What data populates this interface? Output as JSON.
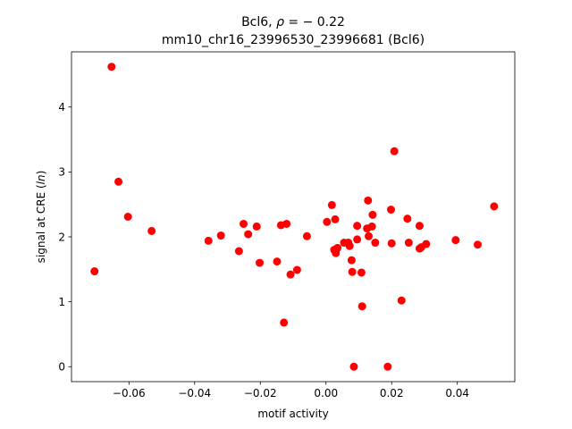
{
  "chart_data": {
    "type": "scatter",
    "title_main": "Bcl6, ",
    "title_rho_symbol": "ρ",
    "title_rho_value": " = − 0.22",
    "title_line2": "mm10_chr16_23996530_23996681 (Bcl6)",
    "xlabel": "motif activity",
    "ylabel_prefix": "signal at CRE (",
    "ylabel_italic": "ln",
    "ylabel_suffix": ")",
    "xlim": [
      -0.0775,
      0.0575
    ],
    "ylim": [
      -0.23,
      4.85
    ],
    "xticks": [
      -0.06,
      -0.04,
      -0.02,
      0.0,
      0.02,
      0.04
    ],
    "xtick_labels": [
      "−0.06",
      "−0.04",
      "−0.02",
      "0.00",
      "0.02",
      "0.04"
    ],
    "yticks": [
      0,
      1,
      2,
      3,
      4
    ],
    "ytick_labels": [
      "0",
      "1",
      "2",
      "3",
      "4"
    ],
    "grid": false,
    "marker_color": "#ff0000",
    "points": [
      {
        "x": -0.0705,
        "y": 1.47
      },
      {
        "x": -0.0653,
        "y": 4.62
      },
      {
        "x": -0.0632,
        "y": 2.85
      },
      {
        "x": -0.0603,
        "y": 2.31
      },
      {
        "x": -0.0531,
        "y": 2.09
      },
      {
        "x": -0.0358,
        "y": 1.94
      },
      {
        "x": -0.032,
        "y": 2.02
      },
      {
        "x": -0.0265,
        "y": 1.78
      },
      {
        "x": -0.0251,
        "y": 2.2
      },
      {
        "x": -0.0237,
        "y": 2.04
      },
      {
        "x": -0.0211,
        "y": 2.16
      },
      {
        "x": -0.0202,
        "y": 1.6
      },
      {
        "x": -0.0149,
        "y": 1.62
      },
      {
        "x": -0.0137,
        "y": 2.18
      },
      {
        "x": -0.0128,
        "y": 0.68
      },
      {
        "x": -0.012,
        "y": 2.2
      },
      {
        "x": -0.0108,
        "y": 1.42
      },
      {
        "x": -0.0088,
        "y": 1.49
      },
      {
        "x": -0.0058,
        "y": 2.01
      },
      {
        "x": 0.0003,
        "y": 2.23
      },
      {
        "x": 0.0018,
        "y": 2.49
      },
      {
        "x": 0.0025,
        "y": 1.8
      },
      {
        "x": 0.0028,
        "y": 2.27
      },
      {
        "x": 0.003,
        "y": 1.75
      },
      {
        "x": 0.0035,
        "y": 1.83
      },
      {
        "x": 0.0055,
        "y": 1.91
      },
      {
        "x": 0.0068,
        "y": 1.91
      },
      {
        "x": 0.0072,
        "y": 1.86
      },
      {
        "x": 0.0078,
        "y": 1.64
      },
      {
        "x": 0.008,
        "y": 1.46
      },
      {
        "x": 0.0085,
        "y": 0.0
      },
      {
        "x": 0.0095,
        "y": 2.17
      },
      {
        "x": 0.0095,
        "y": 1.96
      },
      {
        "x": 0.0108,
        "y": 1.45
      },
      {
        "x": 0.011,
        "y": 0.93
      },
      {
        "x": 0.0125,
        "y": 2.13
      },
      {
        "x": 0.0128,
        "y": 2.56
      },
      {
        "x": 0.013,
        "y": 2.01
      },
      {
        "x": 0.014,
        "y": 2.16
      },
      {
        "x": 0.0142,
        "y": 2.34
      },
      {
        "x": 0.015,
        "y": 1.91
      },
      {
        "x": 0.0188,
        "y": 0.0
      },
      {
        "x": 0.0198,
        "y": 2.42
      },
      {
        "x": 0.02,
        "y": 1.9
      },
      {
        "x": 0.0208,
        "y": 3.32
      },
      {
        "x": 0.023,
        "y": 1.02
      },
      {
        "x": 0.0248,
        "y": 2.28
      },
      {
        "x": 0.0252,
        "y": 1.91
      },
      {
        "x": 0.0285,
        "y": 2.17
      },
      {
        "x": 0.0285,
        "y": 1.82
      },
      {
        "x": 0.029,
        "y": 1.84
      },
      {
        "x": 0.0305,
        "y": 1.89
      },
      {
        "x": 0.0395,
        "y": 1.95
      },
      {
        "x": 0.0462,
        "y": 1.88
      },
      {
        "x": 0.0512,
        "y": 2.47
      }
    ]
  }
}
